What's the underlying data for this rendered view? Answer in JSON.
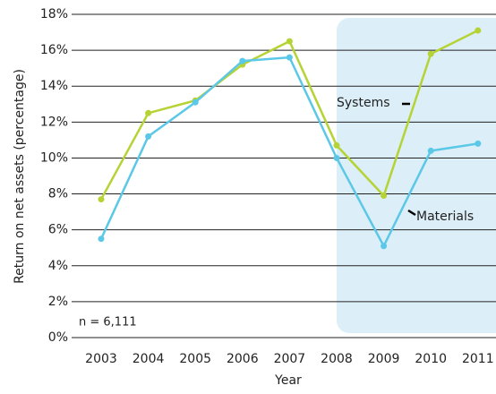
{
  "chart_data": {
    "type": "line",
    "y_label": "Return on net assets (percentage)",
    "x_label": "Year",
    "annotation": "n = 6,111",
    "categories": [
      "2003",
      "2004",
      "2005",
      "2006",
      "2007",
      "2008",
      "2009",
      "2010",
      "2011"
    ],
    "series": [
      {
        "name": "Systems",
        "color": "#b5d334",
        "values": [
          7.7,
          12.5,
          13.2,
          15.2,
          16.5,
          10.7,
          7.9,
          15.8,
          17.1
        ]
      },
      {
        "name": "Materials",
        "color": "#5bc8e8",
        "values": [
          5.5,
          11.2,
          13.1,
          15.4,
          15.6,
          10.0,
          5.1,
          10.4,
          10.8
        ]
      }
    ],
    "ylim": [
      0,
      18
    ],
    "yticks": [
      {
        "value": 0,
        "label": "0%"
      },
      {
        "value": 2,
        "label": "2%"
      },
      {
        "value": 4,
        "label": "4%"
      },
      {
        "value": 6,
        "label": "6%"
      },
      {
        "value": 8,
        "label": "8%"
      },
      {
        "value": 10,
        "label": "10%"
      },
      {
        "value": 12,
        "label": "12%"
      },
      {
        "value": 14,
        "label": "14%"
      },
      {
        "value": 16,
        "label": "16%"
      },
      {
        "value": 18,
        "label": "18%"
      }
    ],
    "grid": true
  }
}
